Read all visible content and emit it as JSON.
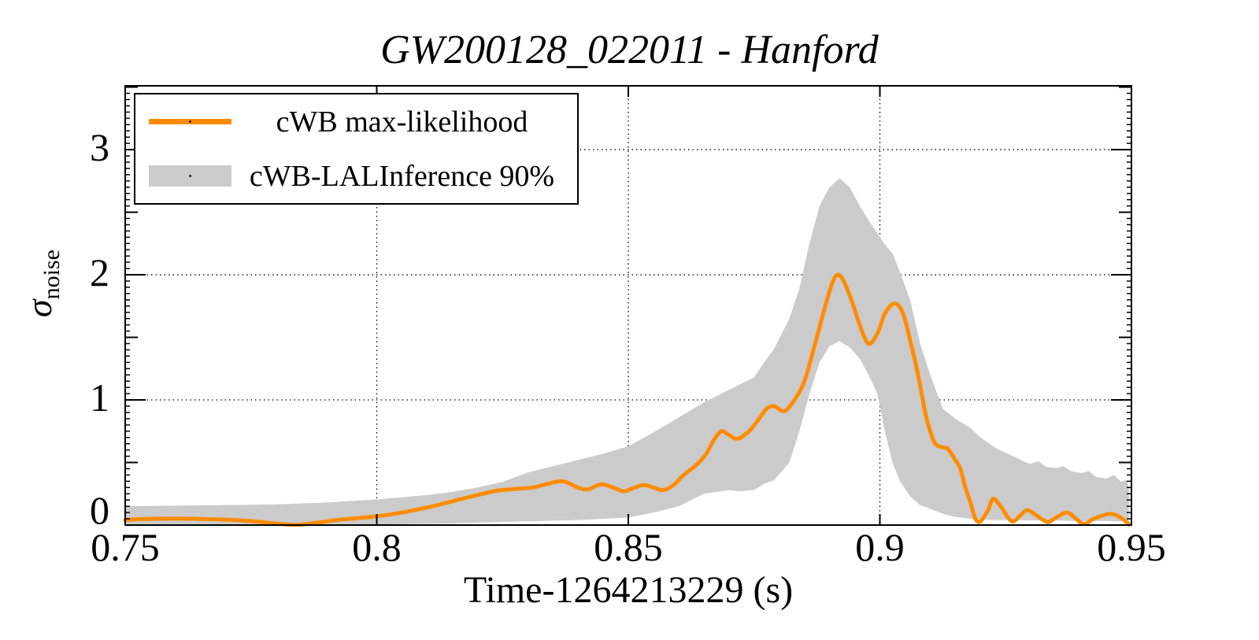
{
  "page": {
    "background": "#ffffff"
  },
  "chart_data": {
    "type": "line",
    "title": "GW200128_022011 - Hanford",
    "xlabel": "Time-1264213229 (s)",
    "ylabel_symbol": "σ",
    "ylabel_subscript": "noise",
    "xlim": [
      0.75,
      0.95
    ],
    "ylim": [
      0,
      3.51
    ],
    "grid": true,
    "x_grid": [
      0.8,
      0.85,
      0.9
    ],
    "y_grid": [
      1,
      2,
      3
    ],
    "x_ticks": [
      {
        "value": 0.75,
        "label": "0.75"
      },
      {
        "value": 0.8,
        "label": "0.8"
      },
      {
        "value": 0.85,
        "label": "0.85"
      },
      {
        "value": 0.9,
        "label": "0.9"
      },
      {
        "value": 0.95,
        "label": "0.95"
      }
    ],
    "y_ticks": [
      {
        "value": 0,
        "label": "0"
      },
      {
        "value": 1,
        "label": "1"
      },
      {
        "value": 2,
        "label": "2"
      },
      {
        "value": 3,
        "label": "3"
      }
    ],
    "y_half_ticks": [
      0.5,
      1.5,
      2.5,
      3.5
    ],
    "y_minor_step": 0.05,
    "colors": {
      "line": "#FF8C00",
      "band": "#CBCBCB",
      "axis": "#000000",
      "grid": "#000000"
    },
    "legend": [
      {
        "label": "cWB max-likelihood",
        "type": "line",
        "color": "#FF8C00"
      },
      {
        "label": "cWB-LALInference 90%",
        "type": "band",
        "color": "#CBCBCB"
      }
    ],
    "series": [
      {
        "name": "cWB max-likelihood",
        "type": "line",
        "points": [
          [
            0.75,
            0.04
          ],
          [
            0.753,
            0.048
          ],
          [
            0.756,
            0.05
          ],
          [
            0.76,
            0.052
          ],
          [
            0.764,
            0.05
          ],
          [
            0.768,
            0.046
          ],
          [
            0.772,
            0.04
          ],
          [
            0.776,
            0.028
          ],
          [
            0.78,
            0.012
          ],
          [
            0.784,
            0.002
          ],
          [
            0.788,
            0.018
          ],
          [
            0.792,
            0.04
          ],
          [
            0.796,
            0.055
          ],
          [
            0.8,
            0.07
          ],
          [
            0.805,
            0.1
          ],
          [
            0.81,
            0.14
          ],
          [
            0.815,
            0.19
          ],
          [
            0.82,
            0.24
          ],
          [
            0.824,
            0.275
          ],
          [
            0.828,
            0.29
          ],
          [
            0.831,
            0.3
          ],
          [
            0.834,
            0.33
          ],
          [
            0.837,
            0.35
          ],
          [
            0.84,
            0.3
          ],
          [
            0.842,
            0.285
          ],
          [
            0.8445,
            0.325
          ],
          [
            0.847,
            0.3
          ],
          [
            0.849,
            0.27
          ],
          [
            0.851,
            0.295
          ],
          [
            0.853,
            0.32
          ],
          [
            0.855,
            0.3
          ],
          [
            0.857,
            0.28
          ],
          [
            0.859,
            0.32
          ],
          [
            0.861,
            0.4
          ],
          [
            0.8635,
            0.48
          ],
          [
            0.8655,
            0.57
          ],
          [
            0.867,
            0.68
          ],
          [
            0.8685,
            0.75
          ],
          [
            0.87,
            0.72
          ],
          [
            0.8717,
            0.69
          ],
          [
            0.874,
            0.75
          ],
          [
            0.876,
            0.85
          ],
          [
            0.8775,
            0.93
          ],
          [
            0.879,
            0.95
          ],
          [
            0.881,
            0.91
          ],
          [
            0.883,
            1.0
          ],
          [
            0.885,
            1.15
          ],
          [
            0.887,
            1.43
          ],
          [
            0.889,
            1.73
          ],
          [
            0.8905,
            1.93
          ],
          [
            0.8916,
            2.0
          ],
          [
            0.8928,
            1.95
          ],
          [
            0.8945,
            1.78
          ],
          [
            0.896,
            1.6
          ],
          [
            0.8977,
            1.45
          ],
          [
            0.8995,
            1.53
          ],
          [
            0.901,
            1.69
          ],
          [
            0.9029,
            1.77
          ],
          [
            0.9045,
            1.7
          ],
          [
            0.906,
            1.48
          ],
          [
            0.9077,
            1.18
          ],
          [
            0.909,
            0.9
          ],
          [
            0.91,
            0.75
          ],
          [
            0.911,
            0.65
          ],
          [
            0.9125,
            0.62
          ],
          [
            0.9135,
            0.61
          ],
          [
            0.915,
            0.52
          ],
          [
            0.916,
            0.45
          ],
          [
            0.917,
            0.3
          ],
          [
            0.918,
            0.18
          ],
          [
            0.919,
            0.05
          ],
          [
            0.92,
            0.03
          ],
          [
            0.9215,
            0.12
          ],
          [
            0.9225,
            0.21
          ],
          [
            0.924,
            0.15
          ],
          [
            0.9262,
            0.03
          ],
          [
            0.928,
            0.08
          ],
          [
            0.9293,
            0.12
          ],
          [
            0.931,
            0.08
          ],
          [
            0.9333,
            0.025
          ],
          [
            0.935,
            0.06
          ],
          [
            0.9372,
            0.1
          ],
          [
            0.939,
            0.05
          ],
          [
            0.9406,
            0.008
          ],
          [
            0.9425,
            0.05
          ],
          [
            0.9458,
            0.09
          ],
          [
            0.948,
            0.055
          ],
          [
            0.9495,
            0.005
          ]
        ]
      },
      {
        "name": "cWB-LALInference 90%",
        "type": "band",
        "points": [
          [
            0.75,
            0.0,
            0.15
          ],
          [
            0.76,
            0.0,
            0.155
          ],
          [
            0.77,
            0.0,
            0.16
          ],
          [
            0.78,
            0.0,
            0.165
          ],
          [
            0.79,
            0.0,
            0.18
          ],
          [
            0.8,
            0.005,
            0.205
          ],
          [
            0.81,
            0.01,
            0.24
          ],
          [
            0.815,
            0.012,
            0.265
          ],
          [
            0.82,
            0.02,
            0.3
          ],
          [
            0.825,
            0.025,
            0.345
          ],
          [
            0.83,
            0.03,
            0.42
          ],
          [
            0.835,
            0.035,
            0.47
          ],
          [
            0.84,
            0.04,
            0.52
          ],
          [
            0.845,
            0.05,
            0.57
          ],
          [
            0.85,
            0.06,
            0.63
          ],
          [
            0.855,
            0.1,
            0.74
          ],
          [
            0.86,
            0.15,
            0.86
          ],
          [
            0.865,
            0.25,
            0.98
          ],
          [
            0.87,
            0.28,
            1.08
          ],
          [
            0.872,
            0.27,
            1.12
          ],
          [
            0.875,
            0.28,
            1.18
          ],
          [
            0.877,
            0.33,
            1.3
          ],
          [
            0.879,
            0.36,
            1.41
          ],
          [
            0.882,
            0.5,
            1.65
          ],
          [
            0.884,
            0.75,
            1.89
          ],
          [
            0.886,
            1.05,
            2.25
          ],
          [
            0.888,
            1.3,
            2.55
          ],
          [
            0.89,
            1.43,
            2.7
          ],
          [
            0.892,
            1.47,
            2.77
          ],
          [
            0.894,
            1.42,
            2.7
          ],
          [
            0.896,
            1.33,
            2.55
          ],
          [
            0.898,
            1.18,
            2.42
          ],
          [
            0.8995,
            1.05,
            2.33
          ],
          [
            0.901,
            0.75,
            2.24
          ],
          [
            0.9025,
            0.5,
            2.17
          ],
          [
            0.904,
            0.35,
            2.02
          ],
          [
            0.906,
            0.23,
            1.8
          ],
          [
            0.908,
            0.16,
            1.45
          ],
          [
            0.91,
            0.13,
            1.2
          ],
          [
            0.9125,
            0.09,
            0.93
          ],
          [
            0.915,
            0.065,
            0.85
          ],
          [
            0.918,
            0.05,
            0.775
          ],
          [
            0.92,
            0.045,
            0.7
          ],
          [
            0.923,
            0.04,
            0.615
          ],
          [
            0.926,
            0.04,
            0.56
          ],
          [
            0.929,
            0.038,
            0.5
          ],
          [
            0.93,
            0.038,
            0.49
          ],
          [
            0.9315,
            0.037,
            0.51
          ],
          [
            0.933,
            0.036,
            0.465
          ],
          [
            0.935,
            0.035,
            0.455
          ],
          [
            0.9365,
            0.035,
            0.47
          ],
          [
            0.938,
            0.034,
            0.43
          ],
          [
            0.94,
            0.033,
            0.415
          ],
          [
            0.9415,
            0.033,
            0.43
          ],
          [
            0.943,
            0.032,
            0.385
          ],
          [
            0.945,
            0.032,
            0.37
          ],
          [
            0.9465,
            0.031,
            0.4
          ],
          [
            0.948,
            0.03,
            0.345
          ],
          [
            0.949,
            0.028,
            0.36
          ],
          [
            0.9495,
            0.025,
            0.3
          ]
        ]
      }
    ]
  }
}
